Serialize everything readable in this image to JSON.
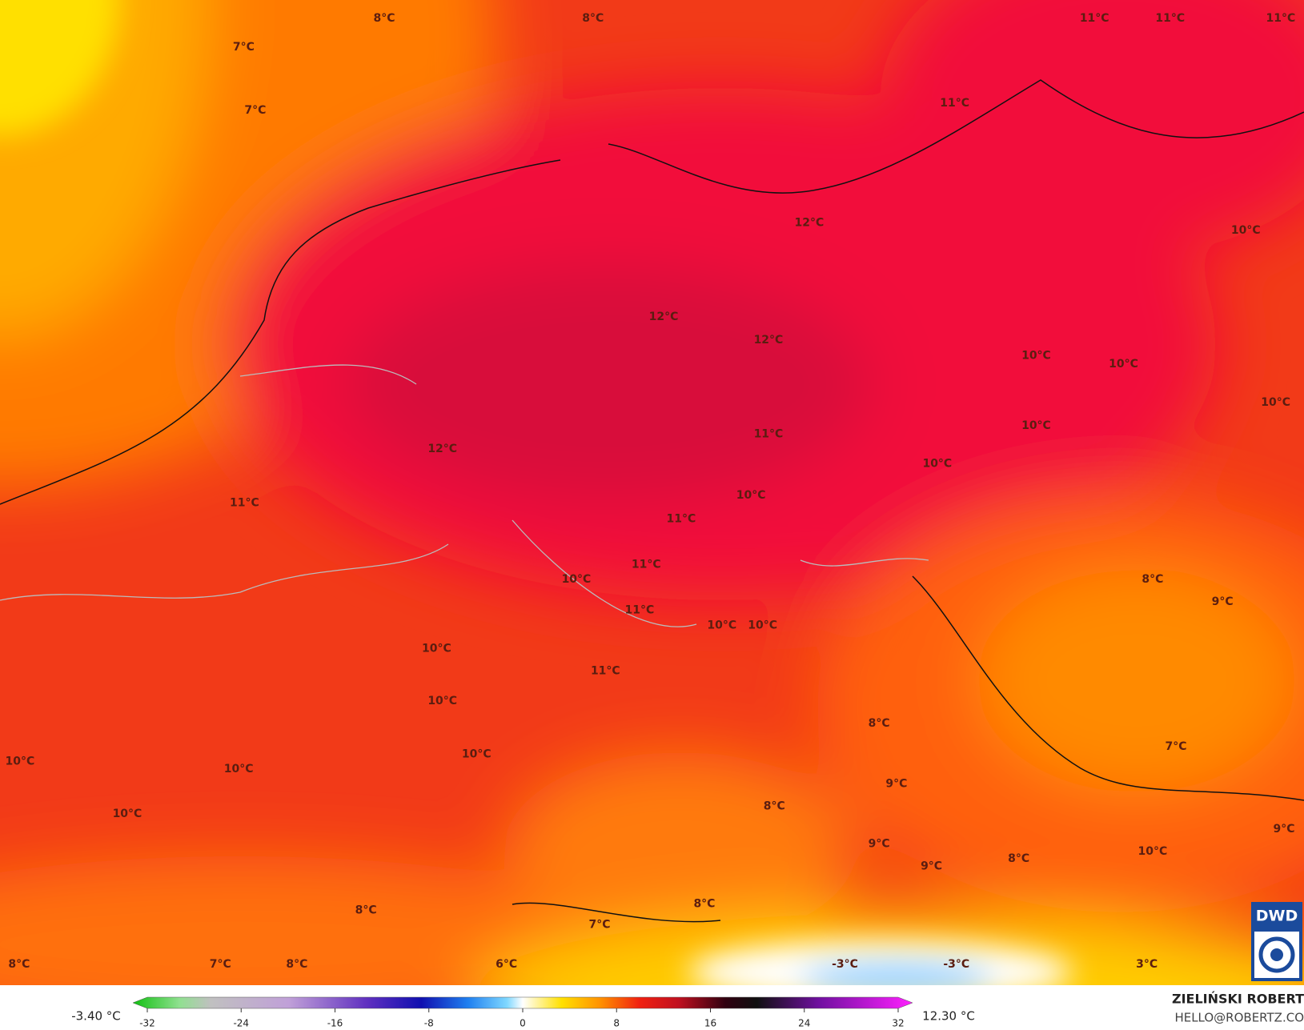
{
  "map": {
    "labels": [
      "8°C",
      "8°C",
      "11°C",
      "11°C",
      "11°C",
      "7°C",
      "7°C",
      "11°C",
      "12°C",
      "10°C",
      "12°C",
      "12°C",
      "10°C",
      "10°C",
      "10°C",
      "11°C",
      "10°C",
      "12°C",
      "10°C",
      "10°C",
      "11°C",
      "11°C",
      "11°C",
      "10°C",
      "8°C",
      "9°C",
      "11°C",
      "10°C",
      "10°C",
      "10°C",
      "11°C",
      "10°C",
      "8°C",
      "7°C",
      "10°C",
      "10°C",
      "10°C",
      "9°C",
      "8°C",
      "10°C",
      "9°C",
      "9°C",
      "10°C",
      "9°C",
      "8°C",
      "8°C",
      "8°C",
      "7°C",
      "8°C",
      "7°C",
      "8°C",
      "6°C",
      "-3°C",
      "-3°C",
      "3°C"
    ],
    "logo": "DWD"
  },
  "colorbar": {
    "range": [
      -32,
      32
    ],
    "ticks": [
      -32,
      -24,
      -16,
      -8,
      0,
      8,
      16,
      24,
      32
    ],
    "min_label": "-3.40 °C",
    "max_label": "12.30 °C"
  },
  "credit": {
    "name": "ZIELIŃSKI ROBERT",
    "email": "HELLO@ROBERTZ.CO"
  }
}
